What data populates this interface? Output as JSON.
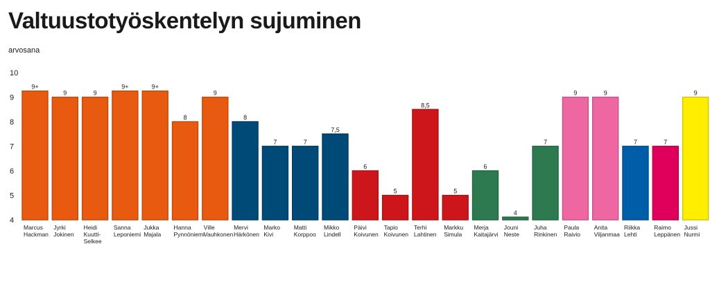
{
  "chart_data": {
    "type": "bar",
    "title": "Valtuustotyöskentelyn sujuminen",
    "ylabel": "arvosana",
    "ylim": [
      4,
      10
    ],
    "yticks": [
      "10",
      "9",
      "8",
      "7",
      "6",
      "5",
      "4"
    ],
    "grid": false,
    "bars": [
      {
        "name": [
          "Marcus",
          "Hackman"
        ],
        "value": 9.25,
        "label": "9+",
        "color": "#e85a0f"
      },
      {
        "name": [
          "Jyrki",
          "Jokinen"
        ],
        "value": 9,
        "label": "9",
        "color": "#e85a0f"
      },
      {
        "name": [
          "Heidi",
          "Kuutti-",
          "Selkee"
        ],
        "value": 9,
        "label": "9",
        "color": "#e85a0f"
      },
      {
        "name": [
          "Sanna",
          "Leponiemi"
        ],
        "value": 9.25,
        "label": "9+",
        "color": "#e85a0f"
      },
      {
        "name": [
          "Jukka",
          "Majala"
        ],
        "value": 9.25,
        "label": "9+",
        "color": "#e85a0f"
      },
      {
        "name": [
          "Hanna",
          "Pynnöniemi"
        ],
        "value": 8,
        "label": "8",
        "color": "#e85a0f"
      },
      {
        "name": [
          "Ville",
          "Vauhkonen"
        ],
        "value": 9,
        "label": "9",
        "color": "#e85a0f"
      },
      {
        "name": [
          "Mervi",
          "Härkönen"
        ],
        "value": 8,
        "label": "8",
        "color": "#004a78"
      },
      {
        "name": [
          "Marko",
          "Kivi"
        ],
        "value": 7,
        "label": "7",
        "color": "#004a78"
      },
      {
        "name": [
          "Matti",
          "Korppoo"
        ],
        "value": 7,
        "label": "7",
        "color": "#004a78"
      },
      {
        "name": [
          "Mikko",
          "Lindell"
        ],
        "value": 7.5,
        "label": "7,5",
        "color": "#004a78"
      },
      {
        "name": [
          "Päivi",
          "Koivunen"
        ],
        "value": 6,
        "label": "6",
        "color": "#cc161b"
      },
      {
        "name": [
          "Tapio",
          "Koivunen"
        ],
        "value": 5,
        "label": "5",
        "color": "#cc161b"
      },
      {
        "name": [
          "Terhi",
          "Lahtinen"
        ],
        "value": 8.5,
        "label": "8,5",
        "color": "#cc161b"
      },
      {
        "name": [
          "Markku",
          "Simula"
        ],
        "value": 5,
        "label": "5",
        "color": "#cc161b"
      },
      {
        "name": [
          "Merja",
          "Kaitajärvi"
        ],
        "value": 6,
        "label": "6",
        "color": "#2e7a50"
      },
      {
        "name": [
          "Jouni",
          "Neste"
        ],
        "value": 4,
        "label": "4",
        "color": "#2e7a50"
      },
      {
        "name": [
          "Juha",
          "Rinkinen"
        ],
        "value": 7,
        "label": "7",
        "color": "#2e7a50"
      },
      {
        "name": [
          "Paula",
          "Raivio"
        ],
        "value": 9,
        "label": "9",
        "color": "#ee66a2"
      },
      {
        "name": [
          "Anita",
          "Viljanmaa"
        ],
        "value": 9,
        "label": "9",
        "color": "#ee66a2"
      },
      {
        "name": [
          "Riikka",
          "Lehti"
        ],
        "value": 7,
        "label": "7",
        "color": "#005da8"
      },
      {
        "name": [
          "Raimo",
          "Leppänen"
        ],
        "value": 7,
        "label": "7",
        "color": "#e0005c"
      },
      {
        "name": [
          "Jussi",
          "Nurmi"
        ],
        "value": 9,
        "label": "9",
        "color": "#ffee00"
      }
    ]
  }
}
